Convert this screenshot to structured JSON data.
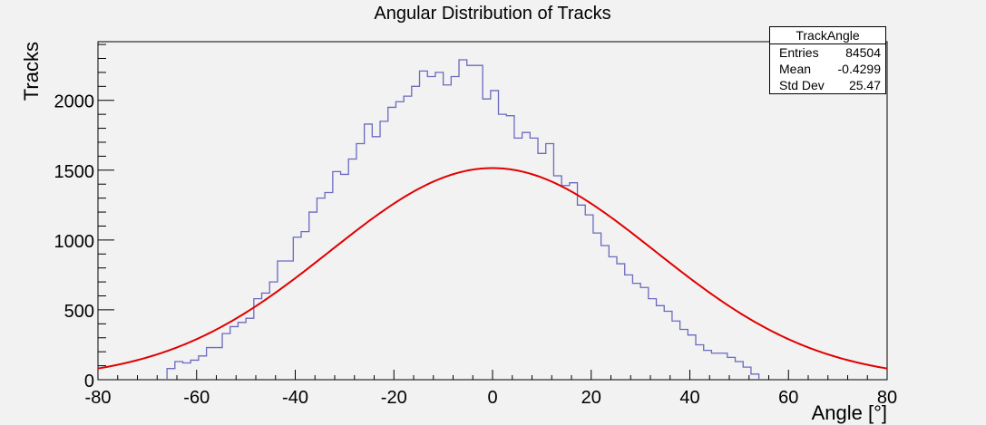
{
  "chart_data": {
    "type": "bar",
    "title": "Angular Distribution of Tracks",
    "xlabel": "Angle [°]",
    "ylabel": "Tracks",
    "xlim": [
      -80,
      80
    ],
    "ylim": [
      0,
      2420
    ],
    "x_ticks": [
      -80,
      -60,
      -40,
      -20,
      0,
      20,
      40,
      60,
      80
    ],
    "y_ticks": [
      0,
      500,
      1000,
      1500,
      2000
    ],
    "histogram": {
      "color": "#6a6ac0",
      "bin_edges_start": -66,
      "bin_width": 1.6,
      "values": [
        80,
        130,
        120,
        140,
        170,
        230,
        230,
        330,
        380,
        410,
        440,
        580,
        620,
        700,
        850,
        850,
        1020,
        1060,
        1200,
        1300,
        1340,
        1490,
        1470,
        1580,
        1690,
        1830,
        1740,
        1850,
        1950,
        1990,
        2030,
        2100,
        2210,
        2170,
        2200,
        2110,
        2170,
        2290,
        2250,
        2250,
        2010,
        2070,
        1900,
        1890,
        1730,
        1770,
        1730,
        1620,
        1690,
        1460,
        1390,
        1410,
        1250,
        1180,
        1050,
        960,
        880,
        830,
        750,
        690,
        660,
        580,
        530,
        490,
        420,
        360,
        320,
        250,
        210,
        190,
        190,
        160,
        130,
        90,
        40
      ]
    },
    "fit": {
      "color": "#e00000",
      "type": "gaussian",
      "amplitude": 1515,
      "mean": 0,
      "sigma": 33
    },
    "stats": {
      "title": "TrackAngle",
      "rows": [
        {
          "label": "Entries",
          "value": "84504"
        },
        {
          "label": "Mean",
          "value": "-0.4299"
        },
        {
          "label": "Std Dev",
          "value": "25.47"
        }
      ]
    }
  }
}
